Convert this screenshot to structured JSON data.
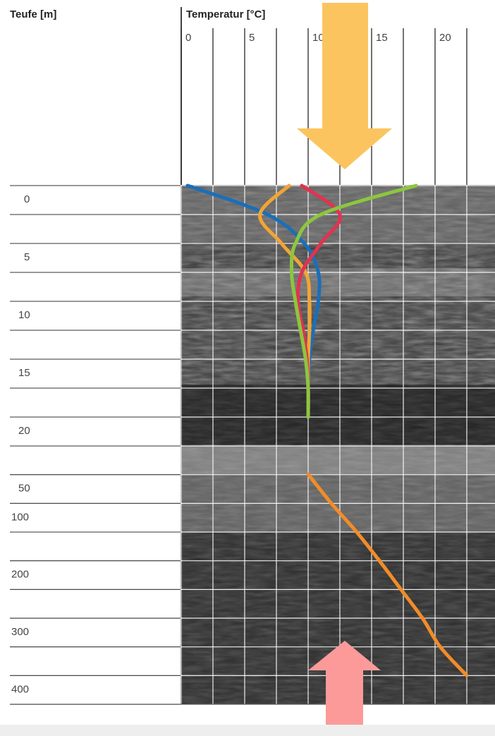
{
  "chart_data": {
    "type": "line",
    "title": "",
    "ylabel": "Teufe [m]",
    "xlabel": "Temperatur [°C]",
    "x_ticks": [
      "0",
      "5",
      "10",
      "15",
      "20"
    ],
    "x_range": [
      0,
      22.5
    ],
    "y_ticks": [
      "0",
      "5",
      "10",
      "15",
      "20",
      "50",
      "100",
      "200",
      "300",
      "400"
    ],
    "y_axis_note": "broken depth axis: 0–20 m in 2.5 m grid rows; 50–400 m below the break",
    "background": "rock-core photograph behind the grid",
    "series": [
      {
        "color": "#1a6fb8",
        "depth_m": [
          0,
          2.5,
          5,
          7.5,
          10,
          12.5,
          15,
          17.5,
          20
        ],
        "temperature_c": [
          0.5,
          6.8,
          9.7,
          10.8,
          10.8,
          10.4,
          10.1,
          10.0,
          10.0
        ]
      },
      {
        "color": "#f2a533",
        "depth_m": [
          0,
          2.5,
          5,
          7.5,
          10,
          12.5,
          15,
          17.5,
          20
        ],
        "temperature_c": [
          8.5,
          6.2,
          7.9,
          9.8,
          10.1,
          10.1,
          10.0,
          10.0,
          10.0
        ]
      },
      {
        "color": "#e03350",
        "depth_m": [
          0,
          2.5,
          5,
          7.5,
          10,
          12.5,
          15,
          17.5,
          20
        ],
        "temperature_c": [
          9.5,
          12.5,
          11.0,
          9.5,
          9.2,
          9.6,
          9.9,
          10.0,
          10.0
        ]
      },
      {
        "color": "#8cc63f",
        "depth_m": [
          0,
          2.5,
          5,
          7.5,
          10,
          12.5,
          15,
          17.5,
          20
        ],
        "temperature_c": [
          18.5,
          11.0,
          9.0,
          8.7,
          9.0,
          9.4,
          9.8,
          10.0,
          10.0
        ]
      },
      {
        "color": "#f28c28",
        "depth_m": [
          50,
          100,
          150,
          200,
          250,
          300,
          350,
          400
        ],
        "temperature_c": [
          10.0,
          11.8,
          13.8,
          15.6,
          17.3,
          19.0,
          20.4,
          22.5
        ]
      }
    ],
    "annotations": [
      {
        "shape": "arrow-down",
        "color": "#fcc45e",
        "position": "top, pointing into the surface near 12.5 °C"
      },
      {
        "shape": "arrow-up",
        "color": "#fc9a9a",
        "position": "bottom, pointing up from below 400 m near 12.5 °C"
      }
    ]
  }
}
